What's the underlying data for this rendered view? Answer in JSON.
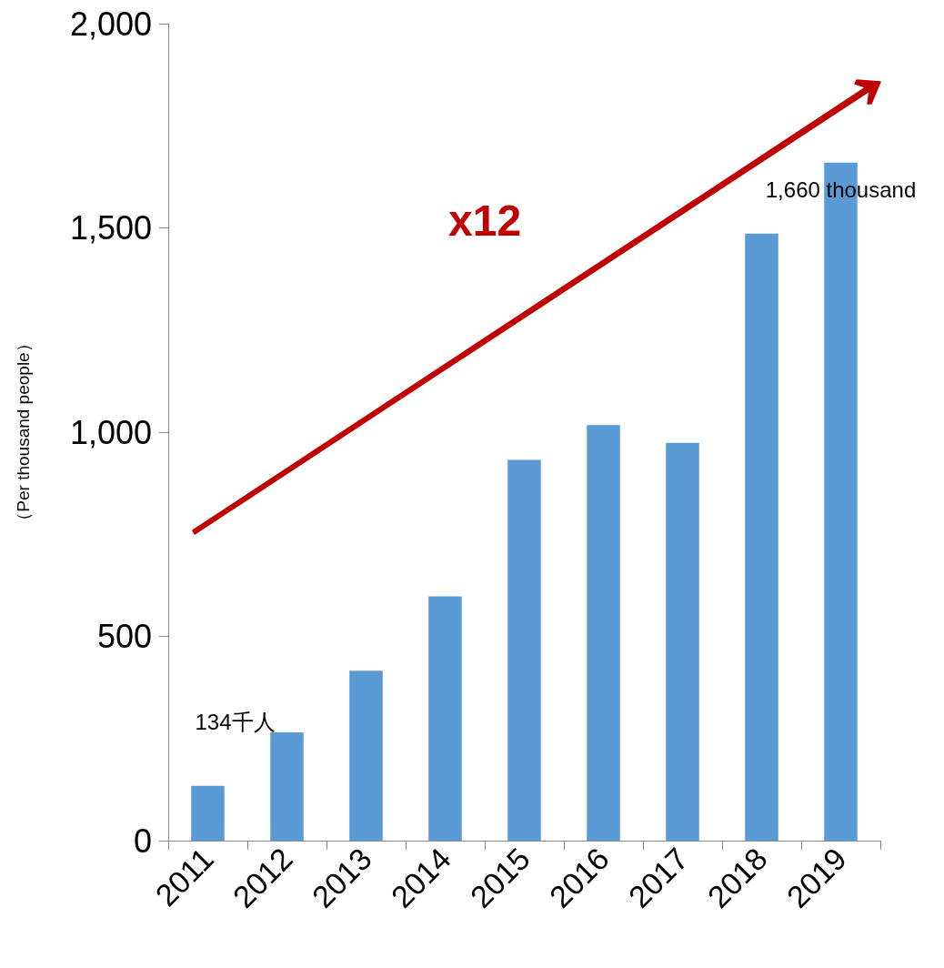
{
  "chart_data": {
    "type": "bar",
    "ylabel": "（Per thousand people）",
    "categories": [
      "2011",
      "2012",
      "2013",
      "2014",
      "2015",
      "2016",
      "2017",
      "2018",
      "2019"
    ],
    "values": [
      134,
      265,
      416,
      598,
      932,
      1017,
      974,
      1486,
      1660
    ],
    "color": "#5b9bd5",
    "ylim": [
      0,
      2000
    ],
    "yticks": [
      0,
      500,
      {
        "value": 1000,
        "label": "1,000"
      },
      {
        "value": 1500,
        "label": "1,500"
      },
      {
        "value": 2000,
        "label": "2,000"
      }
    ],
    "grid": false,
    "annotations": [
      {
        "text": "134千人",
        "x": "2011",
        "y": 134
      },
      {
        "text": "1,660 thousand",
        "x": "2019",
        "y": 1660
      },
      "x12"
    ]
  }
}
